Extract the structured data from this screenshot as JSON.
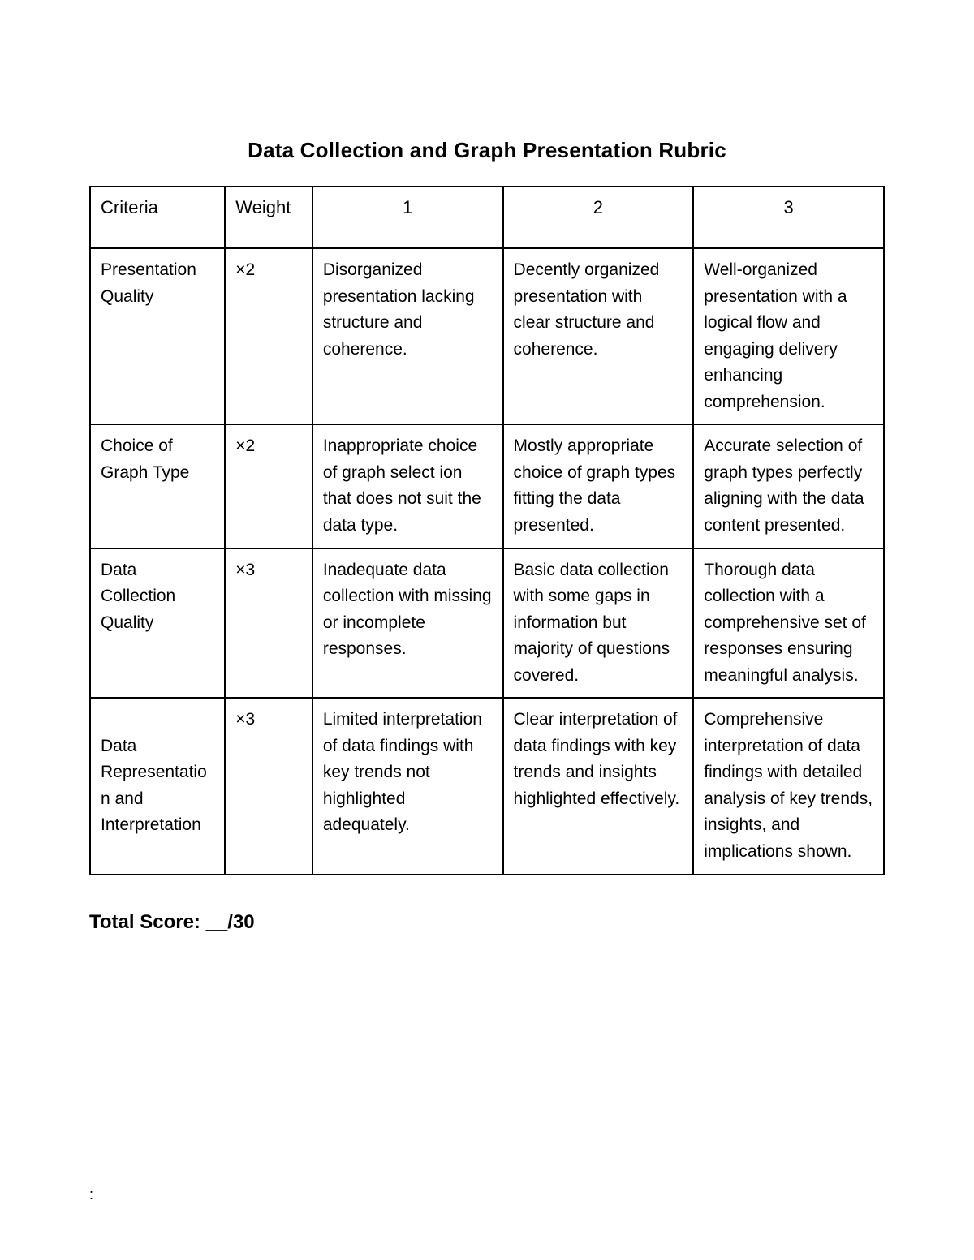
{
  "title": "Data Collection and Graph Presentation Rubric",
  "headers": {
    "criteria": "Criteria",
    "weight": "Weight",
    "score1": "1",
    "score2": "2",
    "score3": "3"
  },
  "rows": [
    {
      "criteria": "Presentation Quality",
      "weight": "×2",
      "s1": "Disorganized presentation lacking structure and coherence.",
      "s2": "Decently organized presentation with clear structure and coherence.",
      "s3": "Well-organized presentation with a logical flow and engaging delivery enhancing comprehension."
    },
    {
      "criteria": "Choice of Graph Type",
      "weight": "×2",
      "s1": "Inappropriate choice of graph select ion that does not suit the data type.",
      "s2": "Mostly appropriate choice of graph types fitting the data presented.",
      "s3": "Accurate selection of graph types perfectly aligning with the data content presented."
    },
    {
      "criteria": "Data Collection Quality",
      "weight": "×3",
      "s1": "Inadequate data collection with missing or incomplete responses.",
      "s2": "Basic data collection with some gaps in information but majority of questions covered.",
      "s3": "Thorough data collection with a comprehensive set of responses ensuring meaningful analysis."
    },
    {
      "criteria": "Data Representation and Interpretation",
      "weight": "×3",
      "s1": "Limited interpretation of data findings with key trends not highlighted adequately.",
      "s2": "Clear interpretation of data findings with key trends and insights highlighted effectively.",
      "s3": "Comprehensive interpretation of data findings with detailed analysis of key trends, insights, and implications shown."
    }
  ],
  "total_score": "Total Score:  __/30",
  "footer": ":"
}
